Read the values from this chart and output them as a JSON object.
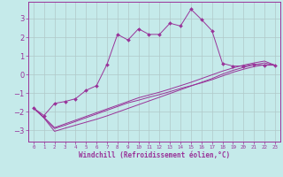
{
  "title": "",
  "xlabel": "Windchill (Refroidissement éolien,°C)",
  "ylabel": "",
  "xlim": [
    -0.5,
    23.5
  ],
  "ylim": [
    -3.6,
    3.9
  ],
  "xticks": [
    0,
    1,
    2,
    3,
    4,
    5,
    6,
    7,
    8,
    9,
    10,
    11,
    12,
    13,
    14,
    15,
    16,
    17,
    18,
    19,
    20,
    21,
    22,
    23
  ],
  "yticks": [
    -3,
    -2,
    -1,
    0,
    1,
    2,
    3
  ],
  "bg_color": "#c5eaea",
  "grid_color": "#b0c8c8",
  "line_color": "#993399",
  "line1_x": [
    0,
    1,
    2,
    3,
    4,
    5,
    6,
    7,
    8,
    9,
    10,
    11,
    12,
    13,
    14,
    15,
    16,
    17,
    18,
    19,
    20,
    21,
    22,
    23
  ],
  "line1_y": [
    -1.8,
    -2.2,
    -1.55,
    -1.45,
    -1.3,
    -0.85,
    -0.6,
    0.55,
    2.15,
    1.85,
    2.45,
    2.15,
    2.15,
    2.75,
    2.6,
    3.5,
    2.95,
    2.35,
    0.6,
    0.45,
    0.45,
    0.55,
    0.5,
    0.5
  ],
  "line2_x": [
    0,
    1,
    2,
    3,
    4,
    5,
    6,
    7,
    8,
    9,
    10,
    11,
    12,
    13,
    14,
    15,
    16,
    17,
    18,
    19,
    20,
    21,
    22,
    23
  ],
  "line2_y": [
    -1.8,
    -2.3,
    -2.85,
    -2.65,
    -2.45,
    -2.25,
    -2.05,
    -1.85,
    -1.65,
    -1.45,
    -1.25,
    -1.1,
    -0.95,
    -0.78,
    -0.6,
    -0.42,
    -0.22,
    -0.02,
    0.18,
    0.35,
    0.5,
    0.62,
    0.72,
    0.5
  ],
  "line3_x": [
    0,
    1,
    2,
    3,
    4,
    5,
    6,
    7,
    8,
    9,
    10,
    11,
    12,
    13,
    14,
    15,
    16,
    17,
    18,
    19,
    20,
    21,
    22,
    23
  ],
  "line3_y": [
    -1.8,
    -2.32,
    -2.9,
    -2.72,
    -2.52,
    -2.32,
    -2.12,
    -1.92,
    -1.72,
    -1.52,
    -1.38,
    -1.22,
    -1.08,
    -0.92,
    -0.75,
    -0.6,
    -0.45,
    -0.28,
    -0.08,
    0.12,
    0.28,
    0.42,
    0.52,
    0.5
  ],
  "line4_x": [
    0,
    1,
    2,
    3,
    4,
    5,
    6,
    7,
    8,
    9,
    10,
    11,
    12,
    13,
    14,
    15,
    16,
    17,
    18,
    19,
    20,
    21,
    22,
    23
  ],
  "line4_y": [
    -1.8,
    -2.34,
    -3.05,
    -2.88,
    -2.72,
    -2.56,
    -2.4,
    -2.22,
    -2.02,
    -1.82,
    -1.62,
    -1.42,
    -1.22,
    -1.02,
    -0.82,
    -0.62,
    -0.42,
    -0.22,
    0.02,
    0.22,
    0.38,
    0.52,
    0.62,
    0.5
  ]
}
